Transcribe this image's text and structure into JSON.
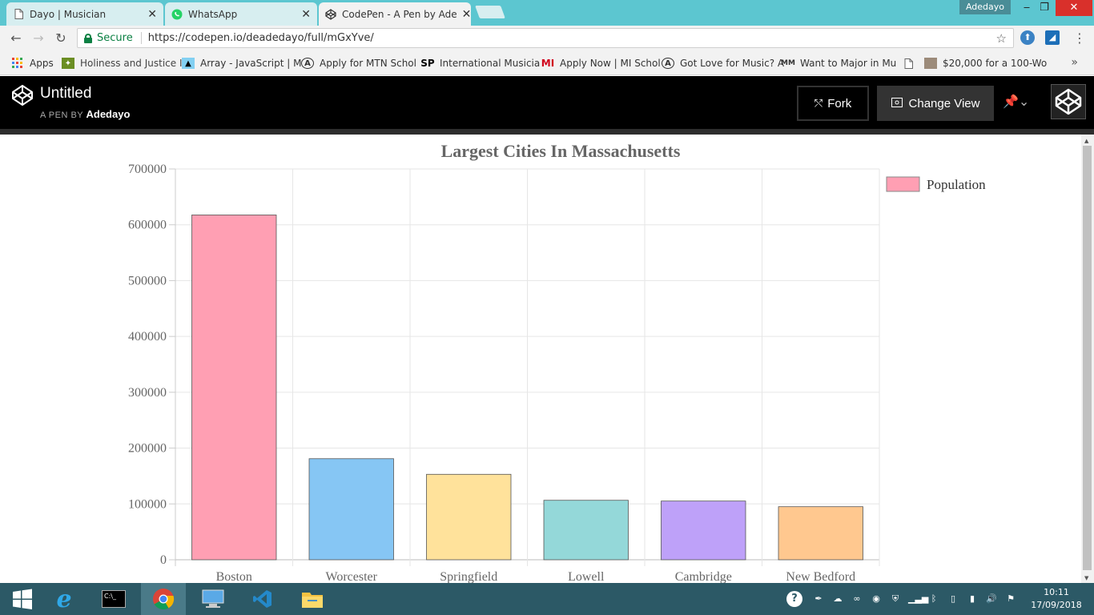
{
  "browser": {
    "tabs": [
      {
        "title": "Dayo | Musician",
        "icon": "page-icon"
      },
      {
        "title": "WhatsApp",
        "icon": "whatsapp-icon"
      },
      {
        "title": "CodePen - A Pen by Ade",
        "icon": "codepen-icon"
      }
    ],
    "user": "Adedayo",
    "secure_label": "Secure",
    "url": "https://codepen.io/deadedayo/full/mGxYve/"
  },
  "bookmarks": [
    {
      "label": "Apps",
      "icon": "apps-grid-icon"
    },
    {
      "label": "Holiness and Justice I",
      "icon": "site-icon"
    },
    {
      "label": "Array - JavaScript | M",
      "icon": "mdn-icon"
    },
    {
      "label": "Apply for MTN Schol",
      "icon": "scholarship-icon"
    },
    {
      "label": "International Musicia",
      "icon": "sp-icon"
    },
    {
      "label": "Apply Now | MI Schol",
      "icon": "mi-icon"
    },
    {
      "label": "Got Love for Music? A",
      "icon": "scholarship-icon"
    },
    {
      "label": "Want to Major in Mu",
      "icon": "mm-icon"
    },
    {
      "label": "",
      "icon": "page-icon"
    },
    {
      "label": "$20,000 for a 100-Wo",
      "icon": "image-icon"
    }
  ],
  "codepen": {
    "title": "Untitled",
    "by_label": "A PEN BY",
    "author": "Adedayo",
    "fork_label": "Fork",
    "change_view_label": "Change View"
  },
  "chart_data": {
    "type": "bar",
    "title": "Largest Cities In Massachusetts",
    "categories": [
      "Boston",
      "Worcester",
      "Springfield",
      "Lowell",
      "Cambridge",
      "New Bedford"
    ],
    "series": [
      {
        "name": "Population",
        "values": [
          617594,
          181045,
          153060,
          106519,
          105162,
          95072
        ]
      }
    ],
    "bar_colors": [
      "#ff9fb3",
      "#86c6f4",
      "#ffe29b",
      "#94d8d9",
      "#bea1f9",
      "#ffc88f"
    ],
    "ylim": [
      0,
      700000
    ],
    "yticks": [
      0,
      100000,
      200000,
      300000,
      400000,
      500000,
      600000,
      700000
    ],
    "legend_position": "right",
    "grid": true
  },
  "taskbar": {
    "time": "10:11",
    "date": "17/09/2018"
  }
}
